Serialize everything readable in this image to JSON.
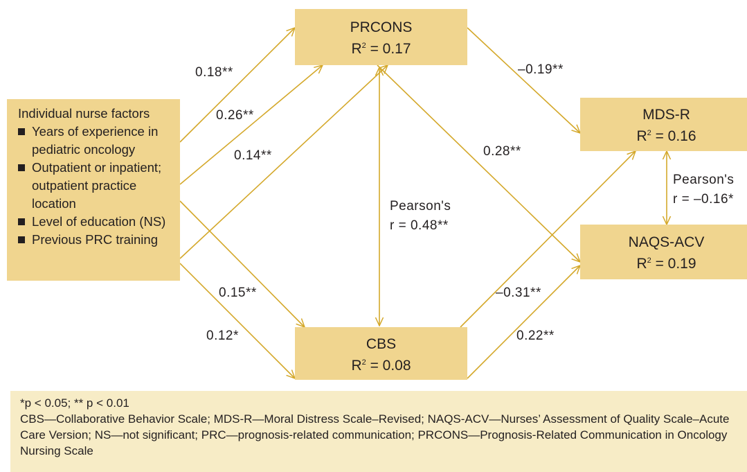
{
  "boxes": {
    "prcons": {
      "title": "PRCONS",
      "r2_label": "R",
      "r2_value": " = 0.17"
    },
    "mds": {
      "title": "MDS-R",
      "r2_label": "R",
      "r2_value": " = 0.16"
    },
    "naqs": {
      "title": "NAQS-ACV",
      "r2_label": "R",
      "r2_value": " = 0.19"
    },
    "cbs": {
      "title": "CBS",
      "r2_label": "R",
      "r2_value": " = 0.08"
    },
    "superscript": "2"
  },
  "factors": {
    "title": "Individual nurse factors",
    "items": [
      "Years of experience in pediatric oncology",
      "Outpatient or inpatient; outpatient practice location",
      "Level of education (NS)",
      "Previous PRC training"
    ]
  },
  "paths": {
    "exp_prcons": "0.18**",
    "loc_prcons": "0.26**",
    "train_prcons": "0.14**",
    "loc_cbs": "0.15**",
    "train_cbs": "0.12*",
    "prcons_mds": "–0.19**",
    "prcons_naqs": "0.28**",
    "cbs_mds": "–0.31**",
    "cbs_naqs": "0.22**"
  },
  "correlations": {
    "prcons_cbs_line1": "Pearson's",
    "prcons_cbs_line2": "r = 0.48**",
    "mds_naqs_line1": "Pearson's",
    "mds_naqs_line2": "r = –0.16*"
  },
  "footnote": {
    "significance": "*p < 0.05; ** p < 0.01",
    "abbreviations": "CBS—Collaborative Behavior Scale; MDS-R—Moral Distress Scale–Revised; NAQS-ACV—Nurses’ Assessment of Quality Scale–Acute Care Version; NS—not significant; PRC—prognosis-related communication; PRCONS—Prognosis-Related Communication in Oncology Nursing Scale"
  },
  "colors": {
    "box_fill": "#f0d58f",
    "arrow": "#d4a82a",
    "footnote_fill": "#f7ecc6"
  }
}
